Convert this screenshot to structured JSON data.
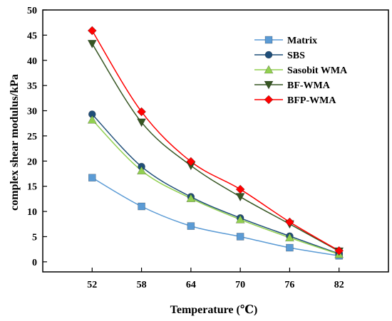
{
  "chart_data": {
    "type": "line",
    "xlabel": "Temperature (℃)",
    "ylabel": "complex shear modulus/kPa",
    "x": [
      52,
      58,
      64,
      70,
      76,
      82
    ],
    "x_ticks": [
      "52",
      "58",
      "64",
      "70",
      "76",
      "82"
    ],
    "xlim": [
      46,
      88
    ],
    "y_ticks": [
      "0",
      "5",
      "10",
      "15",
      "20",
      "25",
      "30",
      "35",
      "40",
      "45",
      "50"
    ],
    "ylim": [
      -2,
      50
    ],
    "grid": false,
    "legend_position": "top-right",
    "series": [
      {
        "name": "Matrix",
        "values": [
          16.7,
          11.0,
          7.1,
          5.0,
          2.8,
          1.2
        ],
        "color": "#5b9bd5",
        "marker": "square"
      },
      {
        "name": "SBS",
        "values": [
          29.3,
          18.9,
          12.9,
          8.7,
          5.1,
          1.6
        ],
        "color": "#1f4e79",
        "marker": "circle"
      },
      {
        "name": "Sasobit WMA",
        "values": [
          28.2,
          18.1,
          12.6,
          8.4,
          4.8,
          1.5
        ],
        "color": "#92d050",
        "marker": "triangle-up"
      },
      {
        "name": "BF-WMA",
        "values": [
          43.3,
          27.7,
          19.1,
          12.9,
          7.5,
          2.1
        ],
        "color": "#375623",
        "marker": "triangle-down"
      },
      {
        "name": "BFP-WMA",
        "values": [
          45.9,
          29.8,
          19.9,
          14.4,
          7.9,
          2.2
        ],
        "color": "#ff0000",
        "marker": "diamond"
      }
    ]
  }
}
